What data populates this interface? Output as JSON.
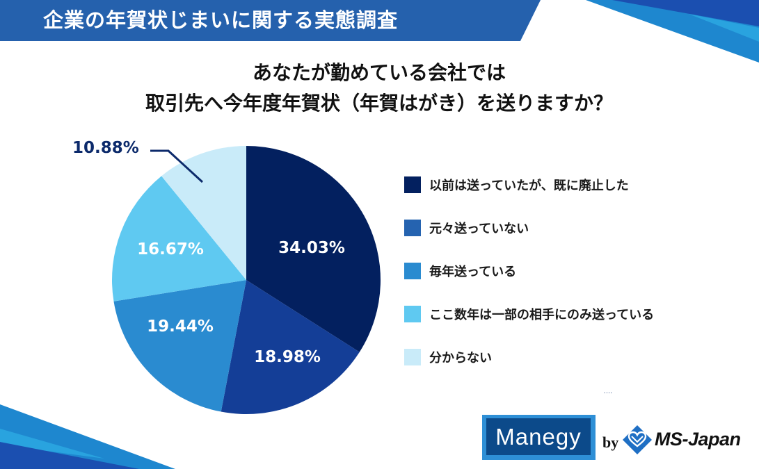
{
  "header": {
    "banner_title": "企業の年賀状じまいに関する実態調査",
    "banner_color": "#2561ad"
  },
  "question": {
    "line1": "あなたが勤めている会社では",
    "line2": "取引先へ今年度年賀状（年賀はがき）を送りますか？"
  },
  "chart_data": {
    "type": "pie",
    "title": "あなたが勤めている会社では取引先へ今年度年賀状（年賀はがき）を送りますか？",
    "start_angle": "12 o'clock",
    "direction": "clockwise",
    "categories": [
      "以前は送っていたが、既に廃止した",
      "元々送っていない",
      "毎年送っている",
      "ここ数年は一部の相手にのみ送っている",
      "分からない"
    ],
    "values": [
      34.03,
      18.98,
      19.44,
      16.67,
      10.88
    ],
    "labels": [
      "34.03%",
      "18.98%",
      "19.44%",
      "16.67%",
      "10.88%"
    ],
    "slice_colors": [
      "#03205f",
      "#143e97",
      "#2a8bd0",
      "#5fc9f1",
      "#c9ebf9"
    ],
    "legend_colors": [
      "#03205f",
      "#2563b0",
      "#2a8bd0",
      "#5fc9f1",
      "#c9ebf9"
    ],
    "legend_position": "right",
    "unit": "%"
  },
  "callout": {
    "label": "10.88%",
    "color": "#0c2a6b"
  },
  "footer": {
    "artifact": "''''",
    "manegy_logo": "Manegy",
    "by": "by",
    "company_logo_icon": "ms-japan-diamond-heart-icon",
    "company": "MS-Japan"
  }
}
